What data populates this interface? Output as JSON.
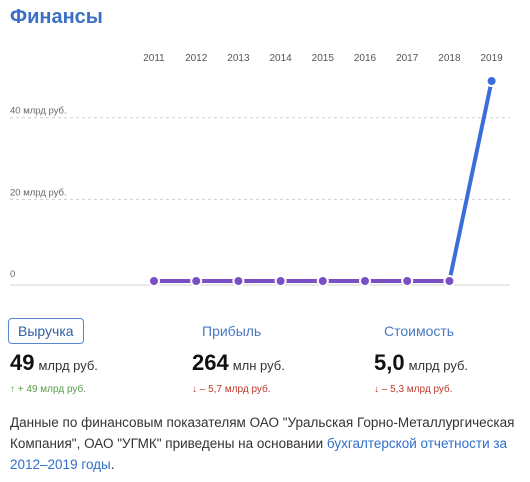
{
  "header": {
    "title": "Финансы"
  },
  "chart_data": {
    "type": "line",
    "x": [
      "2011",
      "2012",
      "2013",
      "2014",
      "2015",
      "2016",
      "2017",
      "2018",
      "2019"
    ],
    "series": [
      {
        "values": [
          0,
          0,
          0,
          0,
          0,
          0,
          0,
          0,
          49
        ],
        "color": "#7b4fc4",
        "highlight_color": "#3b6fd8"
      }
    ],
    "y_ticks": [
      {
        "value": 0,
        "label": "0"
      },
      {
        "value": 20,
        "label": "20 млрд руб."
      },
      {
        "value": 40,
        "label": "40 млрд руб."
      }
    ],
    "ylim": [
      0,
      49
    ],
    "grid": true
  },
  "metrics": [
    {
      "label": "Выручка",
      "value": "49",
      "unit": "млрд руб.",
      "delta": "↑ + 49 млрд руб.",
      "direction": "up",
      "active": true
    },
    {
      "label": "Прибыль",
      "value": "264",
      "unit": "млн руб.",
      "delta": "↓ – 5,7 млрд руб.",
      "direction": "down",
      "active": false
    },
    {
      "label": "Стоимость",
      "value": "5,0",
      "unit": "млрд руб.",
      "delta": "↓ – 5,3 млрд руб.",
      "direction": "down",
      "active": false
    }
  ],
  "footer": {
    "text": "Данные по финансовым показателям ОАО \"Уральская Горно-Металлургическая Компания\", ОАО \"УГМК\" приведены на основании ",
    "link": "бухгалтерской отчетности за 2012–2019 годы",
    "end": "."
  },
  "colors": {
    "accent": "#3a6fc6",
    "up": "#5a9a4a",
    "down": "#c0392b"
  }
}
